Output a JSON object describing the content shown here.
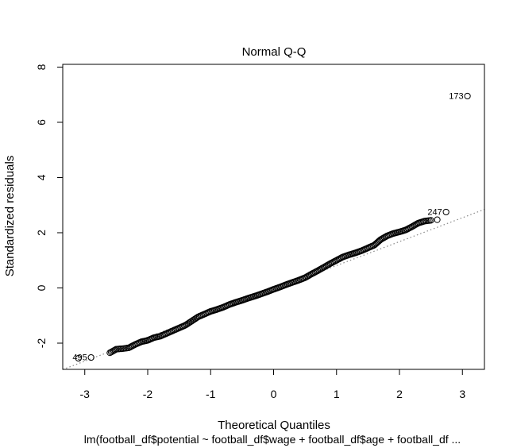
{
  "chart_data": {
    "type": "scatter",
    "title": "Normal Q-Q",
    "xlabel": "Theoretical Quantiles",
    "ylabel": "Standardized residuals",
    "subtitle": "lm(football_df$potential ~ football_df$wage + football_df$age + football_df ...",
    "xlim": [
      -3.35,
      3.35
    ],
    "ylim": [
      -2.95,
      8.1
    ],
    "xticks": [
      -3,
      -2,
      -1,
      0,
      1,
      2,
      3
    ],
    "xtick_labels": [
      "-3",
      "-2",
      "-1",
      "0",
      "1",
      "2",
      "3"
    ],
    "yticks": [
      -2,
      0,
      2,
      4,
      6,
      8
    ],
    "ytick_labels": [
      "-2",
      "0",
      "2",
      "4",
      "6",
      "8"
    ],
    "grid": false,
    "reference_line": {
      "slope": 0.866,
      "intercept": -0.055,
      "style": "dotted"
    },
    "series": [
      {
        "points": [
          [
            -3.1,
            -2.55
          ],
          [
            -2.9,
            -2.52
          ],
          [
            -2.6,
            -2.35
          ],
          [
            -2.5,
            -2.22
          ],
          [
            -2.4,
            -2.2
          ],
          [
            -2.3,
            -2.17
          ],
          [
            -2.2,
            -2.05
          ],
          [
            -2.1,
            -1.95
          ],
          [
            -2.0,
            -1.9
          ],
          [
            -1.9,
            -1.8
          ],
          [
            -1.8,
            -1.75
          ],
          [
            -1.7,
            -1.65
          ],
          [
            -1.6,
            -1.55
          ],
          [
            -1.5,
            -1.45
          ],
          [
            -1.4,
            -1.35
          ],
          [
            -1.3,
            -1.2
          ],
          [
            -1.2,
            -1.05
          ],
          [
            -1.1,
            -0.95
          ],
          [
            -1.0,
            -0.85
          ],
          [
            -0.9,
            -0.78
          ],
          [
            -0.8,
            -0.7
          ],
          [
            -0.7,
            -0.6
          ],
          [
            -0.6,
            -0.52
          ],
          [
            -0.5,
            -0.45
          ],
          [
            -0.4,
            -0.37
          ],
          [
            -0.3,
            -0.3
          ],
          [
            -0.2,
            -0.22
          ],
          [
            -0.1,
            -0.14
          ],
          [
            0.0,
            -0.05
          ],
          [
            0.1,
            0.03
          ],
          [
            0.2,
            0.12
          ],
          [
            0.3,
            0.2
          ],
          [
            0.4,
            0.28
          ],
          [
            0.5,
            0.37
          ],
          [
            0.6,
            0.5
          ],
          [
            0.7,
            0.62
          ],
          [
            0.8,
            0.75
          ],
          [
            0.9,
            0.88
          ],
          [
            1.0,
            1.0
          ],
          [
            1.1,
            1.12
          ],
          [
            1.2,
            1.2
          ],
          [
            1.3,
            1.27
          ],
          [
            1.4,
            1.35
          ],
          [
            1.5,
            1.45
          ],
          [
            1.6,
            1.55
          ],
          [
            1.7,
            1.75
          ],
          [
            1.8,
            1.88
          ],
          [
            1.9,
            1.97
          ],
          [
            2.0,
            2.03
          ],
          [
            2.1,
            2.1
          ],
          [
            2.2,
            2.22
          ],
          [
            2.3,
            2.35
          ],
          [
            2.4,
            2.42
          ],
          [
            2.5,
            2.45
          ],
          [
            2.6,
            2.47
          ],
          [
            2.74,
            2.75
          ],
          [
            3.08,
            6.95
          ]
        ]
      }
    ],
    "annotations": [
      {
        "label": "173",
        "x": 3.08,
        "y": 6.95,
        "side": "left"
      },
      {
        "label": "247",
        "x": 2.74,
        "y": 2.75,
        "side": "left"
      },
      {
        "label": "495",
        "x": -2.9,
        "y": -2.52,
        "side": "left"
      }
    ]
  }
}
